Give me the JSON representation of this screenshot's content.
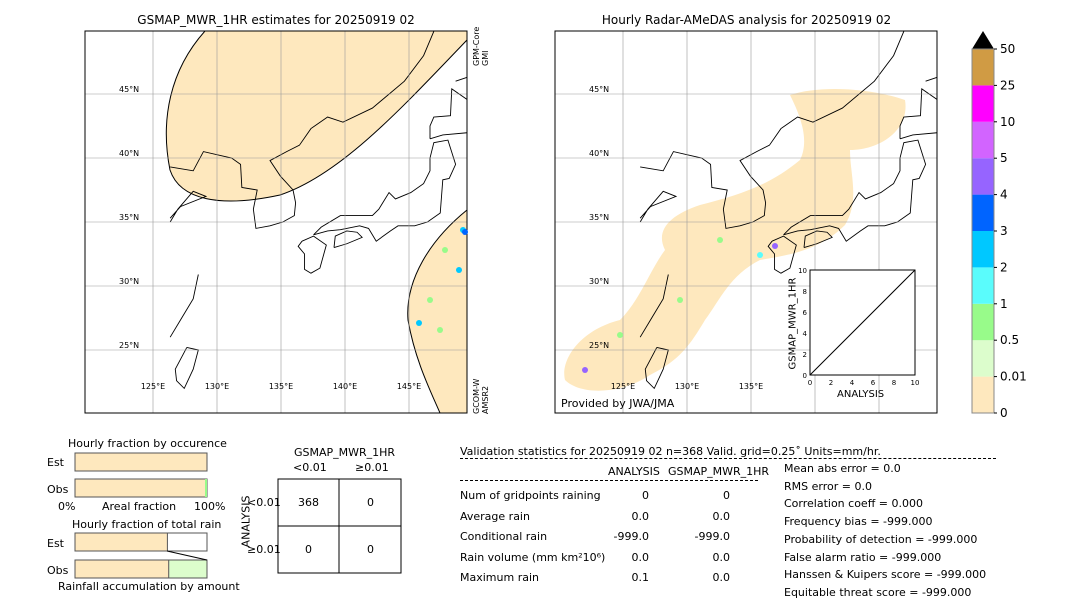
{
  "chart_data": [
    {
      "type": "heatmap",
      "title": "GSMAP_MWR_1HR estimates for 20250919 02",
      "lat_ticks": [
        "45°N",
        "40°N",
        "35°N",
        "30°N",
        "25°N"
      ],
      "lon_ticks": [
        "125°E",
        "130°E",
        "135°E",
        "140°E",
        "145°E"
      ],
      "sensor_top": [
        "GPM-Core",
        "GMI"
      ],
      "sensor_bottom": [
        "GCOM-W",
        "AMSR2"
      ]
    },
    {
      "type": "heatmap",
      "title": "Hourly Radar-AMeDAS analysis for 20250919 02",
      "lat_ticks": [
        "45°N",
        "40°N",
        "35°N",
        "30°N",
        "25°N"
      ],
      "lon_ticks": [
        "125°E",
        "130°E",
        "135°E"
      ],
      "credit": "Provided by JWA/JMA",
      "inset": {
        "type": "scatter",
        "xlabel": "ANALYSIS",
        "ylabel": "GSMAP_MWR_1HR",
        "xlim": [
          0,
          10
        ],
        "ylim": [
          0,
          10
        ],
        "ticks": [
          "0",
          "2",
          "4",
          "6",
          "8",
          "10"
        ]
      }
    },
    {
      "type": "colorbar",
      "labels": [
        "0",
        "0.01",
        "0.5",
        "1",
        "2",
        "3",
        "4",
        "5",
        "10",
        "25",
        "50"
      ],
      "colors": [
        "#fee8be",
        "#dcfdcc",
        "#98fb8a",
        "#5afcfc",
        "#00c8ff",
        "#0064ff",
        "#9664ff",
        "#d264ff",
        "#ff00ff",
        "#d09b44"
      ],
      "extend_color": "#000000"
    }
  ],
  "occurrence": {
    "title": "Hourly fraction by occurence",
    "est": "Est",
    "obs": "Obs",
    "x0": "0%",
    "xlabel": "Areal fraction",
    "x1": "100%",
    "est_fraction": 1.0,
    "obs_fraction": 0.99
  },
  "total_rain": {
    "title": "Hourly fraction of total rain",
    "est": "Est",
    "obs": "Obs",
    "xlabel": "Rainfall accumulation by amount",
    "est_fraction": 0.7,
    "obs_fraction": 0.71
  },
  "contingency": {
    "title": "GSMAP_MWR_1HR",
    "col1": "<0.01",
    "col2": "≥0.01",
    "ylabel": "ANALYSIS",
    "row1": "<0.01",
    "row2": "≥0.01",
    "cells": [
      "368",
      "0",
      "0",
      "0"
    ]
  },
  "stats": {
    "header": "Validation statistics for 20250919 02  n=368 Valid. grid=0.25˚ Units=mm/hr.",
    "col_a": "ANALYSIS",
    "col_b": "GSMAP_MWR_1HR",
    "rows": [
      {
        "label": "Num of gridpoints raining",
        "a": "0",
        "b": "0"
      },
      {
        "label": "Average rain",
        "a": "0.0",
        "b": "0.0"
      },
      {
        "label": "Conditional rain",
        "a": "-999.0",
        "b": "-999.0"
      },
      {
        "label": "Rain volume (mm km²10⁶)",
        "a": "0.0",
        "b": "0.0"
      },
      {
        "label": "Maximum rain",
        "a": "0.1",
        "b": "0.0"
      }
    ],
    "scores": [
      "Mean abs error =    0.0",
      "RMS error =    0.0",
      "Correlation coeff =  0.000",
      "Frequency bias = -999.000",
      "Probability of detection = -999.000",
      "False alarm ratio = -999.000",
      "Hanssen & Kuipers score = -999.000",
      "Equitable threat score = -999.000"
    ]
  }
}
